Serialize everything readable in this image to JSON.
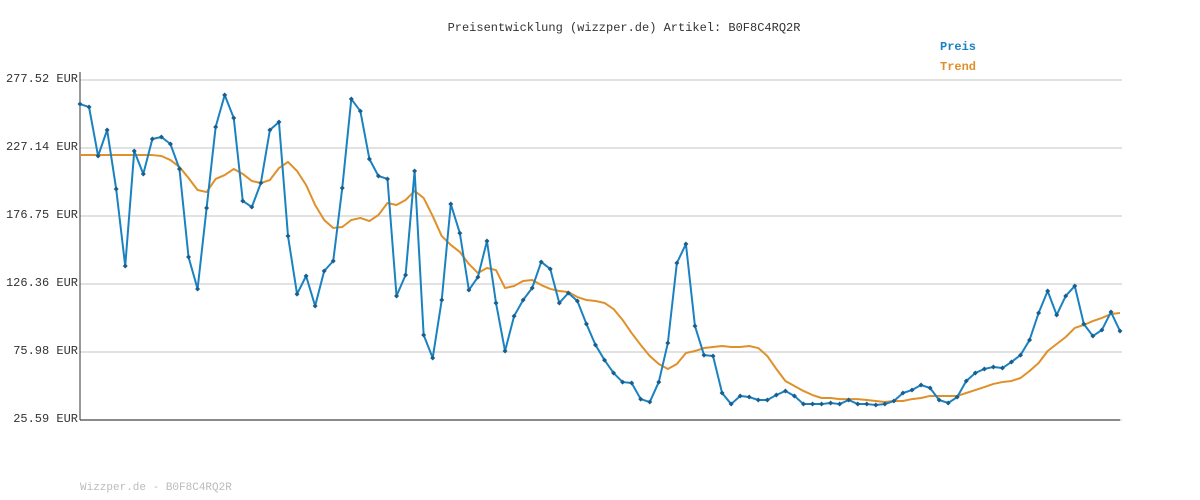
{
  "chart_data": {
    "type": "line",
    "title": "Preisentwicklung (wizzper.de) Artikel: B0F8C4RQ2R",
    "footer": "Wizzper.de - B0F8C4RQ2R",
    "ylim": [
      25.59,
      277.52
    ],
    "yticks": [
      {
        "value": 25.59,
        "label": "25.59 EUR"
      },
      {
        "value": 75.98,
        "label": "75.98 EUR"
      },
      {
        "value": 126.36,
        "label": "126.36 EUR"
      },
      {
        "value": 176.75,
        "label": "176.75 EUR"
      },
      {
        "value": 227.14,
        "label": "227.14 EUR"
      },
      {
        "value": 277.52,
        "label": "277.52 EUR"
      }
    ],
    "grid": true,
    "legend": "top-right",
    "series": [
      {
        "name": "Preis",
        "color": "#1a82c0",
        "markers": true,
        "values": [
          259.7,
          257.5,
          221.2,
          240.5,
          196.8,
          139.7,
          224.9,
          207.9,
          233.8,
          235.3,
          230.1,
          211.6,
          146.4,
          122.7,
          182.7,
          242.7,
          266.4,
          249.4,
          187.9,
          183.4,
          201.2,
          240.5,
          246.4,
          161.9,
          118.9,
          132.3,
          110.1,
          136.0,
          143.4,
          197.5,
          263.4,
          254.5,
          219.0,
          206.4,
          204.2,
          117.5,
          133.0,
          210.1,
          88.6,
          71.5,
          114.5,
          185.6,
          164.1,
          121.9,
          131.5,
          158.2,
          112.3,
          76.7,
          102.6,
          114.5,
          123.4,
          142.7,
          137.5,
          112.3,
          119.7,
          113.8,
          96.7,
          81.2,
          70.0,
          60.4,
          53.7,
          53.0,
          41.1,
          38.9,
          53.7,
          82.6,
          141.9,
          156.0,
          95.2,
          73.7,
          73.0,
          45.6,
          37.4,
          43.4,
          42.6,
          40.4,
          40.4,
          44.1,
          47.1,
          43.4,
          37.4,
          37.4,
          37.4,
          38.2,
          37.4,
          40.4,
          37.4,
          37.4,
          36.7,
          37.4,
          39.7,
          45.6,
          47.8,
          51.5,
          49.3,
          40.4,
          38.2,
          42.6,
          54.5,
          60.4,
          63.4,
          64.9,
          64.1,
          68.6,
          73.7,
          84.9,
          104.9,
          121.2,
          103.4,
          117.5,
          124.9,
          96.7,
          87.8,
          92.3,
          105.6,
          91.5
        ]
      },
      {
        "name": "Trend",
        "color": "#e0902a",
        "markers": false,
        "values": [
          221.9,
          221.9,
          221.9,
          221.9,
          221.9,
          221.9,
          221.9,
          221.9,
          221.9,
          221.2,
          218.2,
          213.1,
          204.9,
          196.0,
          194.5,
          204.2,
          207.1,
          211.6,
          207.9,
          202.7,
          201.2,
          203.4,
          212.3,
          216.8,
          210.1,
          199.7,
          184.9,
          173.8,
          167.9,
          168.6,
          173.8,
          175.3,
          173.0,
          177.5,
          186.4,
          184.9,
          188.6,
          195.3,
          190.1,
          176.7,
          161.9,
          155.3,
          150.1,
          141.2,
          134.5,
          138.2,
          136.7,
          123.4,
          124.9,
          128.6,
          129.3,
          125.6,
          122.7,
          121.2,
          120.4,
          116.7,
          114.5,
          113.8,
          112.3,
          107.8,
          99.7,
          90.0,
          81.2,
          73.0,
          67.1,
          63.4,
          67.1,
          75.2,
          76.7,
          78.9,
          79.7,
          80.4,
          79.7,
          79.7,
          80.4,
          78.9,
          73.0,
          63.4,
          54.5,
          50.8,
          47.1,
          44.1,
          41.9,
          41.9,
          41.1,
          41.1,
          41.1,
          40.4,
          39.7,
          38.9,
          39.7,
          39.7,
          41.1,
          41.9,
          43.4,
          43.4,
          43.4,
          43.4,
          45.6,
          47.8,
          50.0,
          52.3,
          53.7,
          54.5,
          56.7,
          61.9,
          67.8,
          76.7,
          81.9,
          87.1,
          93.8,
          96.0,
          98.9,
          101.2,
          104.1,
          104.9
        ]
      }
    ]
  }
}
